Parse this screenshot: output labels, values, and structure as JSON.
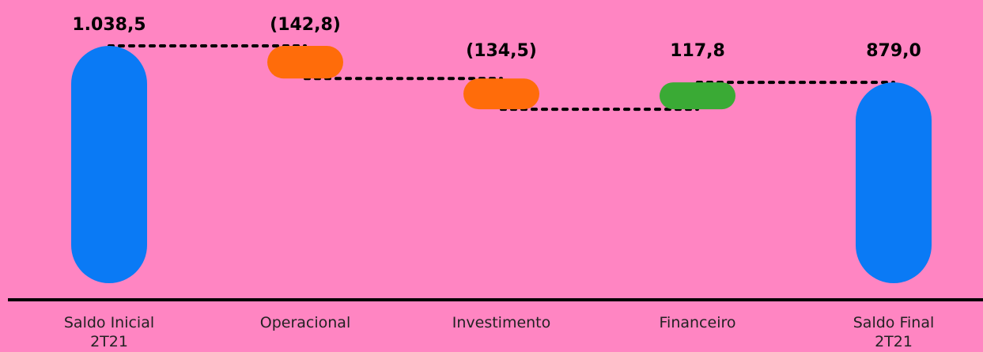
{
  "chart_data": {
    "type": "bar",
    "subtype": "waterfall",
    "title": "",
    "xlabel": "",
    "ylabel": "",
    "categories": [
      {
        "lines": [
          "Saldo Inicial",
          "2T21"
        ]
      },
      {
        "lines": [
          "Operacional"
        ]
      },
      {
        "lines": [
          "Investimento"
        ]
      },
      {
        "lines": [
          "Financeiro"
        ]
      },
      {
        "lines": [
          "Saldo Final",
          "2T21"
        ]
      }
    ],
    "bars": [
      {
        "kind": "total",
        "start": 0,
        "end": 1038.5,
        "label": "1.038,5",
        "color": "#0a7af5"
      },
      {
        "kind": "delta",
        "start": 1038.5,
        "end": 895.7,
        "label": "(142,8)",
        "color": "#ff6c0a"
      },
      {
        "kind": "delta",
        "start": 895.7,
        "end": 761.2,
        "label": "(134,5)",
        "color": "#ff6c0a"
      },
      {
        "kind": "delta",
        "start": 761.2,
        "end": 879.0,
        "label": "117,8",
        "color": "#3aaa35"
      },
      {
        "kind": "total",
        "start": 0,
        "end": 879.0,
        "label": "879,0",
        "color": "#0a7af5"
      }
    ],
    "connectors": "dotted",
    "ylim": [
      0,
      1038.5
    ],
    "grid": false,
    "legend": "none",
    "background": "#ff85c2",
    "axis_color": "#000000"
  }
}
